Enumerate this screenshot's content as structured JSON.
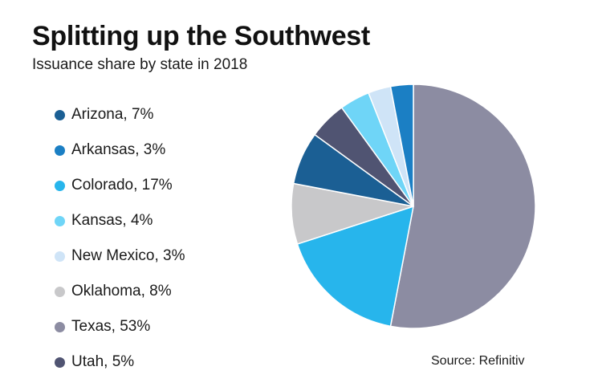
{
  "chart_data": {
    "type": "pie",
    "title": "Splitting up the Southwest",
    "subtitle": "Issuance share by state in 2018",
    "source": "Source: Refinitiv",
    "legend_position": "left",
    "slices": [
      {
        "label": "Arizona",
        "value": 7,
        "value_label": "7%",
        "color": "#1b5f94"
      },
      {
        "label": "Arkansas",
        "value": 3,
        "value_label": "3%",
        "color": "#1b7fc4"
      },
      {
        "label": "Colorado",
        "value": 17,
        "value_label": "17%",
        "color": "#27b5ec"
      },
      {
        "label": "Kansas",
        "value": 4,
        "value_label": "4%",
        "color": "#6fd5f7"
      },
      {
        "label": "New Mexico",
        "value": 3,
        "value_label": "3%",
        "color": "#cfe4f7"
      },
      {
        "label": "Oklahoma",
        "value": 8,
        "value_label": "8%",
        "color": "#c8c8ca"
      },
      {
        "label": "Texas",
        "value": 53,
        "value_label": "53%",
        "color": "#8c8ca2"
      },
      {
        "label": "Utah",
        "value": 5,
        "value_label": "5%",
        "color": "#505472"
      }
    ],
    "pie_order_clockwise_from_top": [
      "Texas",
      "Colorado",
      "Oklahoma",
      "Arizona",
      "Utah",
      "Kansas",
      "New Mexico",
      "Arkansas"
    ]
  }
}
